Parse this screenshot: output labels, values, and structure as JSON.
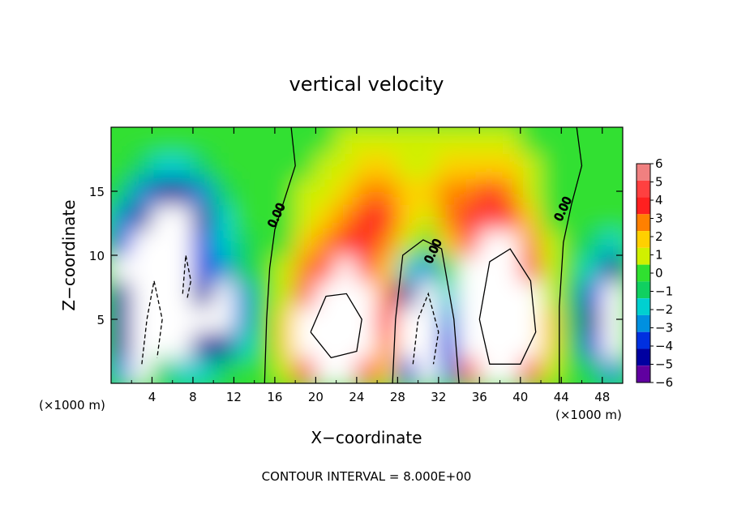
{
  "chart_data": {
    "type": "heatmap",
    "title": "vertical velocity",
    "xlabel": "X−coordinate",
    "ylabel": "Z−coordinate",
    "x_units_left": "(×1000 m)",
    "x_units_right": "(×1000 m)",
    "xlim": [
      0,
      50
    ],
    "ylim": [
      0,
      20
    ],
    "x_ticks": [
      4,
      8,
      12,
      16,
      20,
      24,
      28,
      32,
      36,
      40,
      44,
      48
    ],
    "y_ticks": [
      5,
      10,
      15
    ],
    "x_tick_labels": [
      "4",
      "8",
      "12",
      "16",
      "20",
      "24",
      "28",
      "32",
      "36",
      "40",
      "44",
      "48"
    ],
    "y_tick_labels": [
      "5",
      "10",
      "15"
    ],
    "colorbar": {
      "min": -6,
      "max": 6,
      "levels": [
        6,
        5,
        4,
        3,
        2,
        1,
        0,
        -1,
        -2,
        -3,
        -4,
        -5,
        -6
      ],
      "labels": [
        "6",
        "5",
        "4",
        "3",
        "2",
        "1",
        "0",
        "−1",
        "−2",
        "−3",
        "−4",
        "−5",
        "−6"
      ],
      "colors": [
        "#f08080",
        "#ff4040",
        "#ff2020",
        "#ff8000",
        "#ffd000",
        "#d0f000",
        "#30e030",
        "#10d060",
        "#00d0d0",
        "#0090e0",
        "#0030e0",
        "#0000a0",
        "#6000a0"
      ]
    },
    "contour_labels": [
      {
        "text": "0.00",
        "x": 16.5,
        "y": 13.0
      },
      {
        "text": "0.00",
        "x": 31.8,
        "y": 10.2
      },
      {
        "text": "0.00",
        "x": 44.5,
        "y": 13.5
      }
    ],
    "footer": "CONTOUR INTERVAL = 8.000E+00",
    "cells": [
      {
        "x0": 0,
        "x1": 2,
        "w": [
          -3,
          -5,
          -5,
          -5,
          -6,
          -4,
          -3,
          -1,
          0,
          0
        ]
      },
      {
        "x0": 2,
        "x1": 4,
        "w": [
          -6,
          -6,
          -6,
          -6,
          -6,
          -6,
          -5,
          -3,
          -1,
          0
        ]
      },
      {
        "x0": 4,
        "x1": 6,
        "w": [
          -1,
          -6,
          -6,
          -6,
          -6,
          -6,
          -6,
          -5,
          -2,
          0
        ]
      },
      {
        "x0": 6,
        "x1": 8,
        "w": [
          -2,
          -6,
          -6,
          -6,
          -6,
          -6,
          -6,
          -5,
          -2,
          0
        ]
      },
      {
        "x0": 8,
        "x1": 10,
        "w": [
          -2,
          -5,
          -6,
          -5,
          -4,
          -4,
          -5,
          -3,
          -1,
          0
        ]
      },
      {
        "x0": 10,
        "x1": 12,
        "w": [
          -1,
          -5,
          -6,
          -6,
          -3,
          -2,
          -2,
          -1,
          0,
          0
        ]
      },
      {
        "x0": 12,
        "x1": 14,
        "w": [
          0,
          -2,
          -3,
          -3,
          -1,
          -1,
          0,
          0,
          0,
          0
        ]
      },
      {
        "x0": 14,
        "x1": 16,
        "w": [
          0,
          0,
          0,
          0,
          0,
          0,
          0,
          0,
          0,
          0
        ]
      },
      {
        "x0": 16,
        "x1": 18,
        "w": [
          1,
          2,
          2,
          1,
          1,
          0,
          0,
          0,
          0,
          0
        ]
      },
      {
        "x0": 18,
        "x1": 20,
        "w": [
          4,
          6,
          6,
          5,
          3,
          2,
          1,
          1,
          0,
          0
        ]
      },
      {
        "x0": 20,
        "x1": 22,
        "w": [
          6,
          6,
          6,
          6,
          5,
          3,
          2,
          1,
          1,
          0
        ]
      },
      {
        "x0": 22,
        "x1": 24,
        "w": [
          6,
          6,
          6,
          6,
          6,
          4,
          3,
          2,
          1,
          1
        ]
      },
      {
        "x0": 24,
        "x1": 26,
        "w": [
          5,
          6,
          6,
          6,
          5,
          4,
          4,
          3,
          2,
          1
        ]
      },
      {
        "x0": 26,
        "x1": 28,
        "w": [
          2,
          3,
          4,
          3,
          2,
          3,
          4,
          3,
          2,
          1
        ]
      },
      {
        "x0": 28,
        "x1": 30,
        "w": [
          -4,
          -6,
          -6,
          -5,
          -2,
          1,
          2,
          2,
          1,
          1
        ]
      },
      {
        "x0": 30,
        "x1": 32,
        "w": [
          -6,
          -6,
          -6,
          -6,
          -3,
          0,
          1,
          2,
          1,
          1
        ]
      },
      {
        "x0": 32,
        "x1": 34,
        "w": [
          -3,
          -4,
          -3,
          -2,
          0,
          2,
          3,
          3,
          2,
          1
        ]
      },
      {
        "x0": 34,
        "x1": 36,
        "w": [
          5,
          6,
          6,
          6,
          6,
          5,
          4,
          3,
          2,
          1
        ]
      },
      {
        "x0": 36,
        "x1": 38,
        "w": [
          6,
          6,
          6,
          6,
          6,
          6,
          5,
          4,
          2,
          1
        ]
      },
      {
        "x0": 38,
        "x1": 40,
        "w": [
          6,
          6,
          6,
          6,
          6,
          6,
          4,
          3,
          2,
          1
        ]
      },
      {
        "x0": 40,
        "x1": 42,
        "w": [
          5,
          6,
          6,
          6,
          5,
          3,
          2,
          1,
          1,
          0
        ]
      },
      {
        "x0": 42,
        "x1": 44,
        "w": [
          1,
          2,
          2,
          1,
          1,
          1,
          0,
          0,
          0,
          0
        ]
      },
      {
        "x0": 44,
        "x1": 46,
        "w": [
          0,
          0,
          -1,
          -1,
          0,
          0,
          0,
          0,
          0,
          0
        ]
      },
      {
        "x0": 46,
        "x1": 48,
        "w": [
          -1,
          -4,
          -5,
          -4,
          -2,
          -1,
          0,
          0,
          0,
          0
        ]
      },
      {
        "x0": 48,
        "x1": 50,
        "w": [
          -3,
          -6,
          -6,
          -6,
          -5,
          -2,
          0,
          0,
          0,
          0
        ]
      }
    ],
    "z_rows": [
      [
        0,
        2
      ],
      [
        2,
        4
      ],
      [
        4,
        6
      ],
      [
        6,
        8
      ],
      [
        8,
        10
      ],
      [
        10,
        12
      ],
      [
        12,
        14
      ],
      [
        14,
        16
      ],
      [
        16,
        18
      ],
      [
        18,
        20
      ]
    ]
  }
}
